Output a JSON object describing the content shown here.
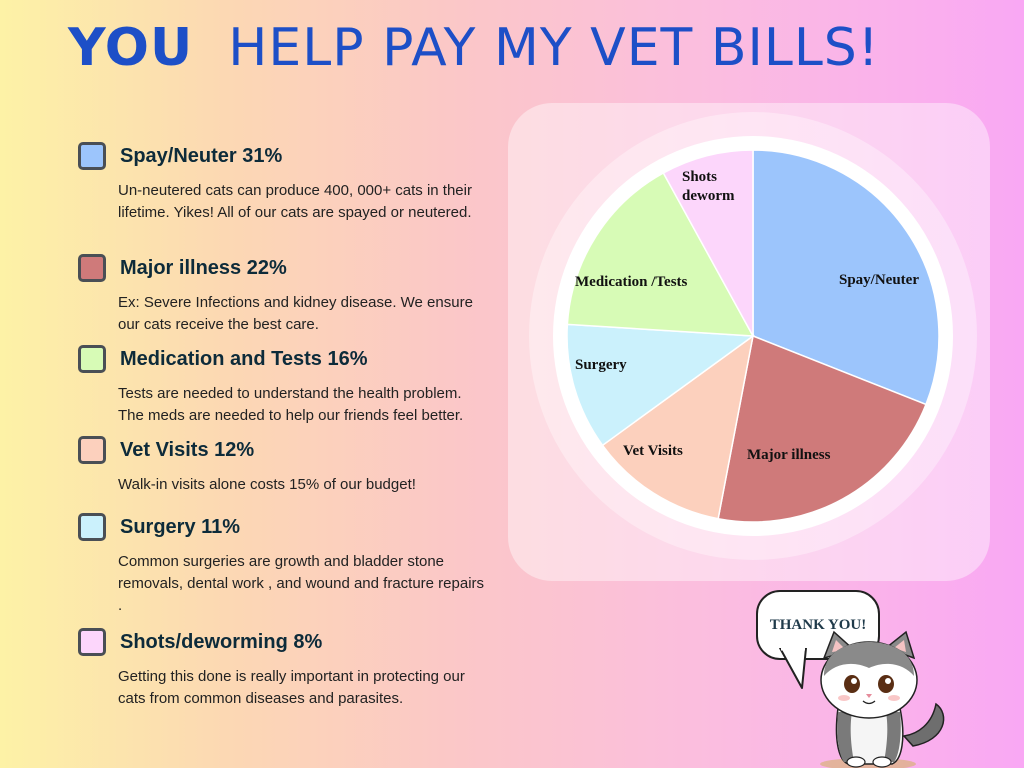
{
  "header": {
    "title_bold": "YOU",
    "title_rest": "HELP PAY MY VET BILLS!"
  },
  "categories": [
    {
      "title": "Spay/Neuter 31%",
      "color": "#9cc5fc",
      "desc": "Un-neutered cats can produce 400, 000+ cats in their lifetime.  Yikes!  All of our cats are spayed or neutered."
    },
    {
      "title": "Major illness 22%",
      "color": "#cf7a7a",
      "desc": "Ex: Severe Infections and kidney disease. We ensure our cats receive the best care."
    },
    {
      "title": "Medication and Tests 16%",
      "color": "#d7fbb6",
      "desc": "Tests are needed to understand the health problem. The meds are needed to help our friends feel better."
    },
    {
      "title": "Vet Visits 12%",
      "color": "#fcd0bd",
      "desc": "Walk-in visits alone costs 15% of our budget!"
    },
    {
      "title": "Surgery 11%",
      "color": "#cbf1fc",
      "desc": "Common surgeries  are growth and bladder stone removals, dental work , and wound and fracture repairs ."
    },
    {
      "title": "Shots/deworming  8%",
      "color": "#fcd6fb",
      "desc": "Getting this done is really important in protecting our cats from common diseases and parasites."
    }
  ],
  "chart_data": {
    "type": "pie",
    "slices": [
      {
        "label": "Spay/Neuter",
        "value": 31,
        "color": "#9cc5fc"
      },
      {
        "label": "Major illness",
        "value": 22,
        "color": "#cf7a7a"
      },
      {
        "label": "Vet Visits",
        "value": 12,
        "color": "#fcd0bd"
      },
      {
        "label": "Surgery",
        "value": 11,
        "color": "#cbf1fc"
      },
      {
        "label": "Medication /Tests",
        "value": 16,
        "color": "#d7fbb6"
      },
      {
        "label": "Shots deworm",
        "value": 8,
        "color": "#fcd6fb"
      }
    ]
  },
  "bubble": {
    "text": "THANK YOU!"
  }
}
